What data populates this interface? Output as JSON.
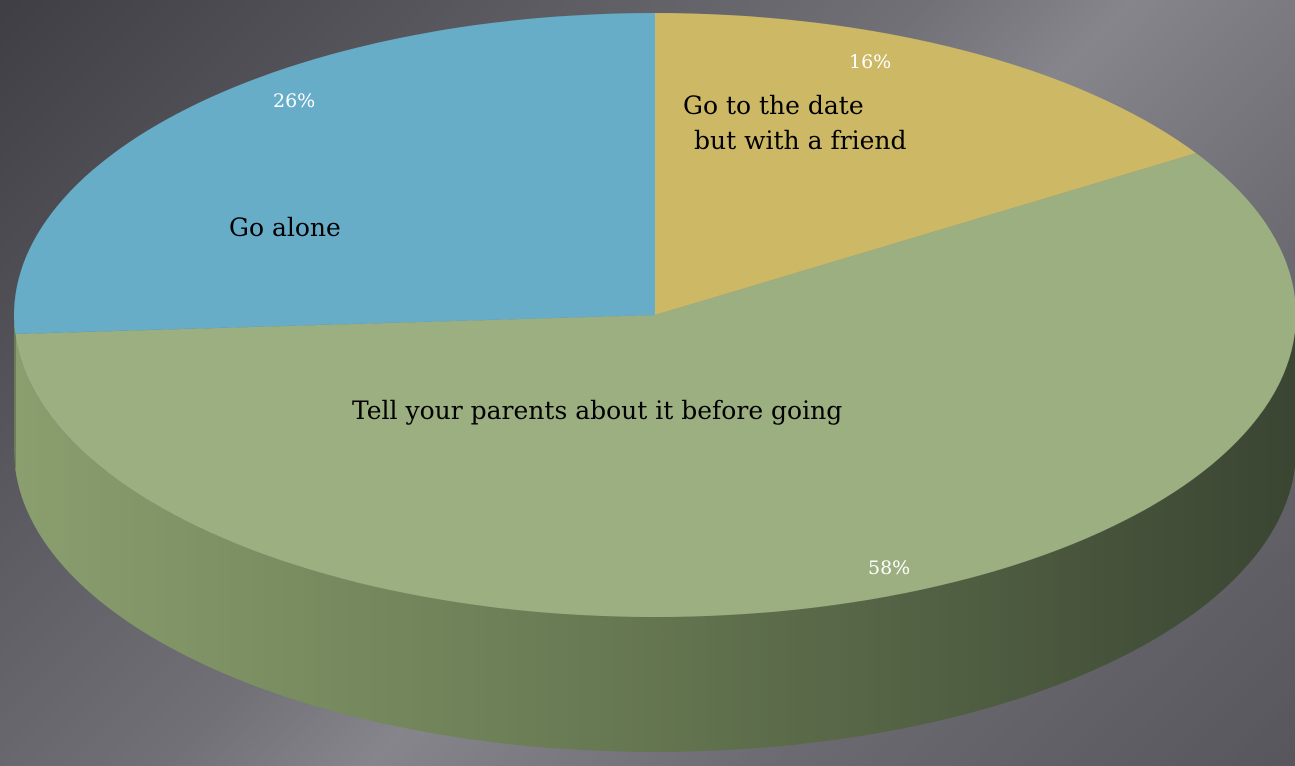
{
  "chart_data": {
    "type": "pie",
    "style": "3d",
    "title": "",
    "categories": [
      "Go to the date but with a friend",
      "Tell your parents about it before going",
      "Go alone"
    ],
    "values": [
      16,
      58,
      26
    ],
    "percent_labels": [
      "16%",
      "58%",
      "26%"
    ],
    "colors": [
      "#ccb865",
      "#9caf80",
      "#67adc8"
    ],
    "legend": "none"
  },
  "labels": {
    "friend_line1": "Go to the date",
    "friend_line2": "but with a friend",
    "parents": "Tell your parents about it before going",
    "alone": "Go alone",
    "pct_friend": "16%",
    "pct_parents": "58%",
    "pct_alone": "26%"
  }
}
